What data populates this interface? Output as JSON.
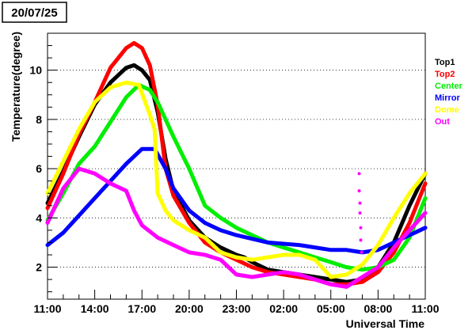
{
  "chart_data": {
    "type": "line",
    "title": "20/07/25",
    "xlabel": "Universal Time",
    "ylabel": "Temperature(degree)",
    "x_tick_labels": [
      "11:00",
      "14:00",
      "17:00",
      "20:00",
      "23:00",
      "02:00",
      "05:00",
      "08:00",
      "11:00"
    ],
    "x_ticks_hours": [
      0,
      3,
      6,
      9,
      12,
      15,
      18,
      21,
      24
    ],
    "xlim_hours": [
      0,
      24
    ],
    "y_ticks": [
      2,
      4,
      6,
      8,
      10
    ],
    "y_tick_labels": [
      "2",
      "4",
      "6",
      "8",
      "10"
    ],
    "ylim": [
      0.7,
      11.5
    ],
    "grid": "horizontal dotted",
    "legend_position": "right",
    "series": [
      {
        "name": "Top1",
        "color": "#000000",
        "x": [
          0,
          1,
          2,
          3,
          4,
          5,
          5.5,
          6,
          6.5,
          7,
          7.5,
          8,
          9,
          10,
          11,
          12,
          12.5,
          13,
          14,
          15,
          16,
          17,
          18,
          19,
          20,
          21,
          22,
          23,
          24
        ],
        "y": [
          4.6,
          5.9,
          7.3,
          8.6,
          9.5,
          10.1,
          10.2,
          10.0,
          9.6,
          8.3,
          6.4,
          5.1,
          3.9,
          3.2,
          2.8,
          2.5,
          2.4,
          2.2,
          1.9,
          1.8,
          1.7,
          1.6,
          1.5,
          1.4,
          1.5,
          2.0,
          3.0,
          4.5,
          5.8
        ]
      },
      {
        "name": "Top2",
        "color": "#ff0000",
        "x": [
          0,
          1,
          2,
          3,
          4,
          5,
          5.5,
          6,
          6.5,
          7,
          7.5,
          8,
          9,
          10,
          11,
          12,
          13,
          14,
          15,
          16,
          17,
          18,
          19,
          20,
          21,
          22,
          23,
          24
        ],
        "y": [
          4.4,
          5.8,
          7.4,
          8.7,
          10.1,
          10.9,
          11.1,
          10.9,
          10.2,
          8.6,
          6.0,
          4.9,
          3.8,
          3.0,
          2.6,
          2.3,
          2.0,
          1.8,
          1.7,
          1.6,
          1.5,
          1.3,
          1.3,
          1.4,
          1.8,
          2.6,
          3.8,
          5.4
        ]
      },
      {
        "name": "Center",
        "color": "#00ee00",
        "x": [
          0,
          1,
          2,
          3,
          4,
          5,
          5.8,
          6.5,
          7,
          8,
          9,
          10,
          11,
          12,
          13,
          14,
          15,
          16,
          17,
          18,
          19,
          20,
          21,
          22,
          23,
          24
        ],
        "y": [
          3.9,
          5.0,
          6.2,
          6.9,
          7.9,
          8.9,
          9.4,
          9.2,
          8.7,
          7.3,
          6.0,
          4.5,
          4.0,
          3.6,
          3.3,
          3.0,
          2.8,
          2.6,
          2.4,
          2.2,
          2.0,
          1.9,
          2.0,
          2.3,
          3.2,
          4.8
        ]
      },
      {
        "name": "Mirror",
        "color": "#0000ff",
        "x": [
          0,
          1,
          2,
          3,
          4,
          5,
          6,
          6.8,
          7.5,
          8,
          9,
          10,
          11,
          12,
          14,
          16,
          18,
          19,
          20,
          21,
          22,
          23,
          24
        ],
        "y": [
          2.9,
          3.4,
          4.1,
          4.8,
          5.5,
          6.2,
          6.8,
          6.8,
          6.0,
          5.2,
          4.3,
          3.8,
          3.5,
          3.3,
          3.0,
          2.9,
          2.7,
          2.7,
          2.6,
          2.7,
          3.0,
          3.3,
          3.6
        ]
      },
      {
        "name": "Dome",
        "color": "#ffff00",
        "x": [
          0,
          1,
          2,
          3,
          4,
          5,
          5.8,
          6.5,
          6.8,
          7,
          7.5,
          8,
          9,
          10,
          11,
          12,
          13,
          14,
          15,
          16,
          17,
          18,
          19,
          20,
          21,
          22,
          23,
          24
        ],
        "y": [
          5.0,
          6.3,
          7.6,
          8.7,
          9.3,
          9.5,
          9.4,
          8.2,
          7.6,
          5.0,
          4.3,
          3.9,
          3.5,
          3.2,
          2.6,
          2.4,
          2.3,
          2.4,
          2.5,
          2.5,
          2.3,
          1.6,
          1.7,
          2.1,
          2.9,
          4.0,
          5.0,
          5.8
        ]
      },
      {
        "name": "Out",
        "color": "#ff00ff",
        "x": [
          0,
          1,
          1.5,
          2,
          3,
          4,
          5,
          5.5,
          6,
          7,
          8,
          9,
          10,
          11,
          12,
          13,
          14,
          15,
          16,
          17,
          18,
          19,
          20,
          21,
          22,
          23,
          24
        ],
        "y": [
          3.8,
          5.2,
          5.6,
          6.0,
          5.8,
          5.4,
          5.1,
          4.3,
          3.7,
          3.2,
          2.9,
          2.6,
          2.5,
          2.3,
          1.7,
          1.6,
          1.7,
          1.8,
          1.7,
          1.5,
          1.3,
          1.2,
          1.6,
          2.0,
          2.8,
          3.5,
          4.2
        ]
      }
    ],
    "outliers": [
      {
        "series": "Out",
        "x": 19.8,
        "y": 5.8
      },
      {
        "series": "Out",
        "x": 19.8,
        "y": 5.1
      },
      {
        "series": "Out",
        "x": 19.85,
        "y": 4.6
      },
      {
        "series": "Out",
        "x": 19.85,
        "y": 4.2
      },
      {
        "series": "Out",
        "x": 19.9,
        "y": 3.6
      },
      {
        "series": "Out",
        "x": 19.9,
        "y": 3.1
      },
      {
        "series": "Out",
        "x": 19.95,
        "y": 2.6
      }
    ]
  }
}
